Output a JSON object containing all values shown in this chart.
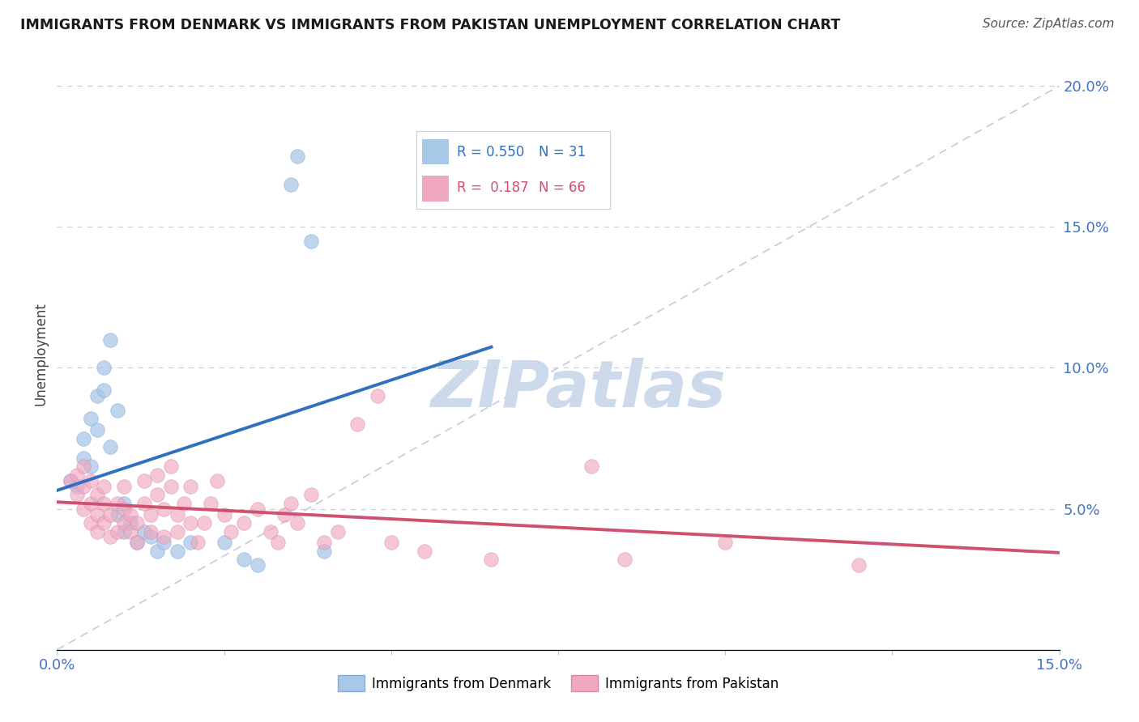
{
  "title": "IMMIGRANTS FROM DENMARK VS IMMIGRANTS FROM PAKISTAN UNEMPLOYMENT CORRELATION CHART",
  "source": "Source: ZipAtlas.com",
  "ylabel": "Unemployment",
  "xlim": [
    0,
    0.15
  ],
  "ylim": [
    0.0,
    0.21
  ],
  "xticks": [
    0.0,
    0.025,
    0.05,
    0.075,
    0.1,
    0.125,
    0.15
  ],
  "xtick_labels": [
    "0.0%",
    "",
    "",
    "",
    "",
    "",
    "15.0%"
  ],
  "yticks_right": [
    0.05,
    0.1,
    0.15,
    0.2
  ],
  "ytick_labels_right": [
    "5.0%",
    "10.0%",
    "15.0%",
    "20.0%"
  ],
  "denmark_R": 0.55,
  "denmark_N": 31,
  "pakistan_R": 0.187,
  "pakistan_N": 66,
  "denmark_color": "#a8c8e8",
  "pakistan_color": "#f0a8c0",
  "denmark_line_color": "#3070c0",
  "pakistan_line_color": "#d05070",
  "ref_line_color": "#b0c0d8",
  "background_color": "#ffffff",
  "grid_color": "#c8d0dc",
  "denmark_scatter": [
    [
      0.002,
      0.06
    ],
    [
      0.003,
      0.058
    ],
    [
      0.004,
      0.075
    ],
    [
      0.004,
      0.068
    ],
    [
      0.005,
      0.082
    ],
    [
      0.005,
      0.065
    ],
    [
      0.006,
      0.09
    ],
    [
      0.006,
      0.078
    ],
    [
      0.007,
      0.1
    ],
    [
      0.007,
      0.092
    ],
    [
      0.008,
      0.11
    ],
    [
      0.008,
      0.072
    ],
    [
      0.009,
      0.085
    ],
    [
      0.009,
      0.048
    ],
    [
      0.01,
      0.052
    ],
    [
      0.01,
      0.042
    ],
    [
      0.011,
      0.045
    ],
    [
      0.012,
      0.038
    ],
    [
      0.013,
      0.042
    ],
    [
      0.014,
      0.04
    ],
    [
      0.015,
      0.035
    ],
    [
      0.016,
      0.038
    ],
    [
      0.018,
      0.035
    ],
    [
      0.02,
      0.038
    ],
    [
      0.025,
      0.038
    ],
    [
      0.028,
      0.032
    ],
    [
      0.03,
      0.03
    ],
    [
      0.035,
      0.165
    ],
    [
      0.036,
      0.175
    ],
    [
      0.038,
      0.145
    ],
    [
      0.04,
      0.035
    ]
  ],
  "pakistan_scatter": [
    [
      0.002,
      0.06
    ],
    [
      0.003,
      0.055
    ],
    [
      0.003,
      0.062
    ],
    [
      0.004,
      0.05
    ],
    [
      0.004,
      0.058
    ],
    [
      0.004,
      0.065
    ],
    [
      0.005,
      0.045
    ],
    [
      0.005,
      0.052
    ],
    [
      0.005,
      0.06
    ],
    [
      0.006,
      0.042
    ],
    [
      0.006,
      0.048
    ],
    [
      0.006,
      0.055
    ],
    [
      0.007,
      0.045
    ],
    [
      0.007,
      0.052
    ],
    [
      0.007,
      0.058
    ],
    [
      0.008,
      0.04
    ],
    [
      0.008,
      0.048
    ],
    [
      0.009,
      0.042
    ],
    [
      0.009,
      0.052
    ],
    [
      0.01,
      0.045
    ],
    [
      0.01,
      0.05
    ],
    [
      0.01,
      0.058
    ],
    [
      0.011,
      0.042
    ],
    [
      0.011,
      0.048
    ],
    [
      0.012,
      0.038
    ],
    [
      0.012,
      0.045
    ],
    [
      0.013,
      0.052
    ],
    [
      0.013,
      0.06
    ],
    [
      0.014,
      0.042
    ],
    [
      0.014,
      0.048
    ],
    [
      0.015,
      0.055
    ],
    [
      0.015,
      0.062
    ],
    [
      0.016,
      0.04
    ],
    [
      0.016,
      0.05
    ],
    [
      0.017,
      0.058
    ],
    [
      0.017,
      0.065
    ],
    [
      0.018,
      0.042
    ],
    [
      0.018,
      0.048
    ],
    [
      0.019,
      0.052
    ],
    [
      0.02,
      0.045
    ],
    [
      0.02,
      0.058
    ],
    [
      0.021,
      0.038
    ],
    [
      0.022,
      0.045
    ],
    [
      0.023,
      0.052
    ],
    [
      0.024,
      0.06
    ],
    [
      0.025,
      0.048
    ],
    [
      0.026,
      0.042
    ],
    [
      0.028,
      0.045
    ],
    [
      0.03,
      0.05
    ],
    [
      0.032,
      0.042
    ],
    [
      0.033,
      0.038
    ],
    [
      0.034,
      0.048
    ],
    [
      0.035,
      0.052
    ],
    [
      0.036,
      0.045
    ],
    [
      0.038,
      0.055
    ],
    [
      0.04,
      0.038
    ],
    [
      0.042,
      0.042
    ],
    [
      0.045,
      0.08
    ],
    [
      0.048,
      0.09
    ],
    [
      0.05,
      0.038
    ],
    [
      0.055,
      0.035
    ],
    [
      0.065,
      0.032
    ],
    [
      0.08,
      0.065
    ],
    [
      0.085,
      0.032
    ],
    [
      0.1,
      0.038
    ],
    [
      0.12,
      0.03
    ]
  ],
  "watermark_text": "ZIPatlas",
  "watermark_color": "#ccdaeb"
}
